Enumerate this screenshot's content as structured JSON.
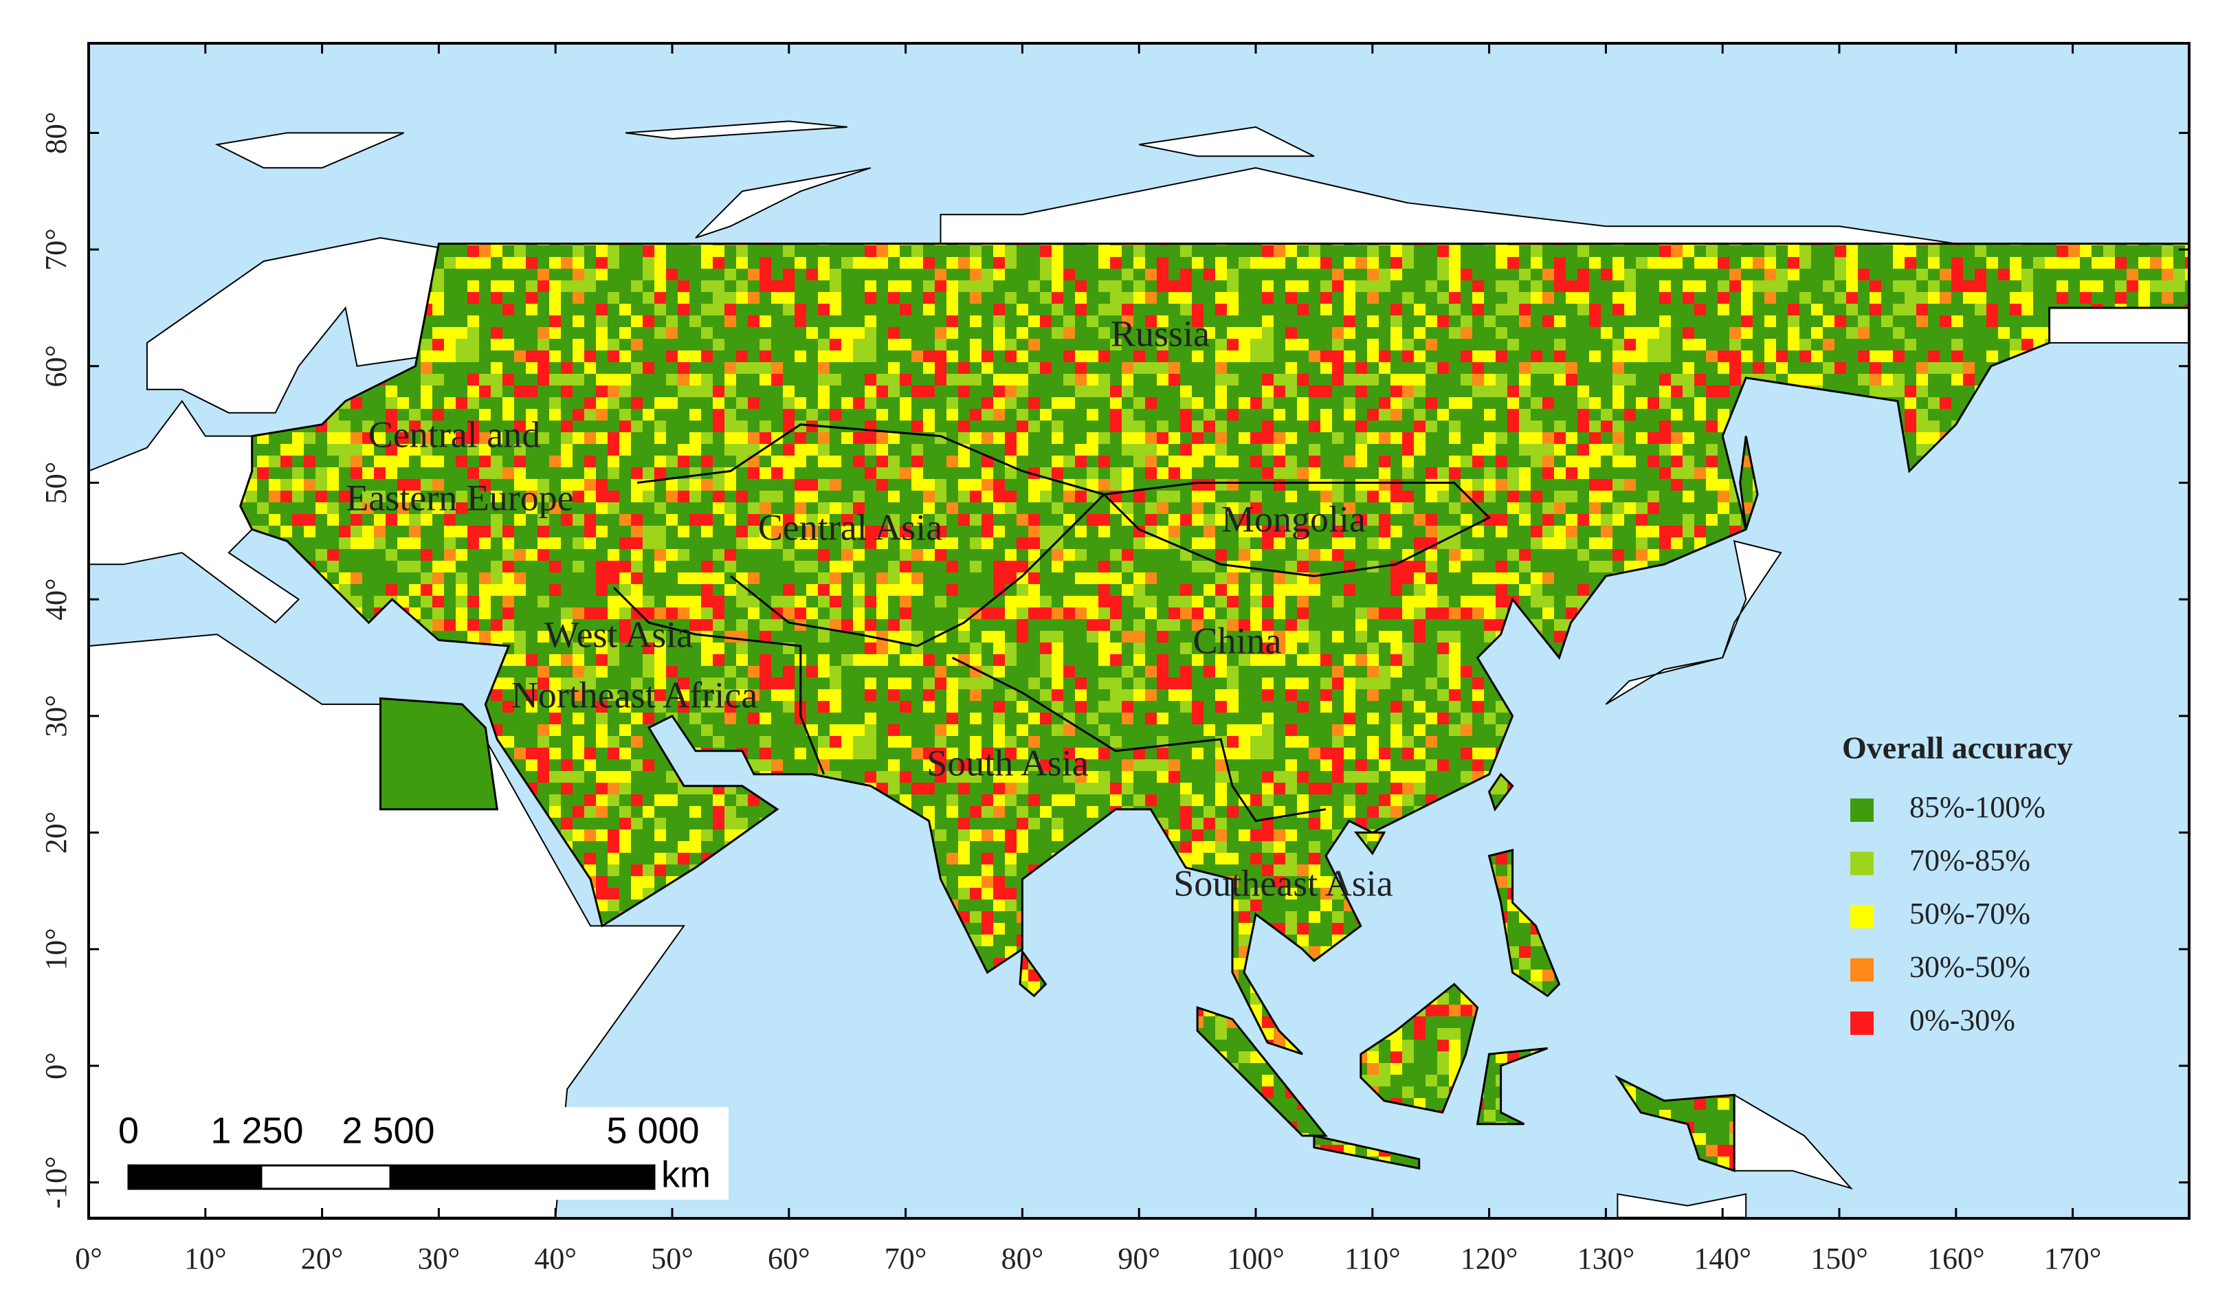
{
  "map": {
    "x_ticks": [
      {
        "value": 0,
        "label": "0°"
      },
      {
        "value": 10,
        "label": "10°"
      },
      {
        "value": 20,
        "label": "20°"
      },
      {
        "value": 30,
        "label": "30°"
      },
      {
        "value": 40,
        "label": "40°"
      },
      {
        "value": 50,
        "label": "50°"
      },
      {
        "value": 60,
        "label": "60°"
      },
      {
        "value": 70,
        "label": "70°"
      },
      {
        "value": 80,
        "label": "80°"
      },
      {
        "value": 90,
        "label": "90°"
      },
      {
        "value": 100,
        "label": "100°"
      },
      {
        "value": 110,
        "label": "110°"
      },
      {
        "value": 120,
        "label": "120°"
      },
      {
        "value": 130,
        "label": "130°"
      },
      {
        "value": 140,
        "label": "140°"
      },
      {
        "value": 150,
        "label": "150°"
      },
      {
        "value": 160,
        "label": "160°"
      },
      {
        "value": 170,
        "label": "170°"
      }
    ],
    "y_ticks": [
      {
        "value": -10,
        "label": "-10°"
      },
      {
        "value": 0,
        "label": "0°"
      },
      {
        "value": 10,
        "label": "10°"
      },
      {
        "value": 20,
        "label": "20°"
      },
      {
        "value": 30,
        "label": "30°"
      },
      {
        "value": 40,
        "label": "40°"
      },
      {
        "value": 50,
        "label": "50°"
      },
      {
        "value": 60,
        "label": "60°"
      },
      {
        "value": 70,
        "label": "70°"
      },
      {
        "value": 80,
        "label": "80°"
      }
    ],
    "regions": [
      "Russia",
      "Central and",
      "Eastern Europe",
      "Central Asia",
      "Mongolia",
      "West Asia",
      "China",
      "Northeast Africa",
      "South Asia",
      "Southeast Asia"
    ],
    "legend": {
      "title": "Overall accuracy",
      "items": [
        {
          "label": "85%-100%",
          "color": "#3f9c0e"
        },
        {
          "label": "70%-85%",
          "color": "#9dd41c"
        },
        {
          "label": "50%-70%",
          "color": "#ffff00"
        },
        {
          "label": "30%-50%",
          "color": "#ff8a1a"
        },
        {
          "label": "0%-30%",
          "color": "#ff1a1a"
        }
      ]
    },
    "scale_bar": {
      "labels": [
        "0",
        "1 250",
        "2 500",
        "5 000"
      ],
      "unit": "km"
    }
  }
}
